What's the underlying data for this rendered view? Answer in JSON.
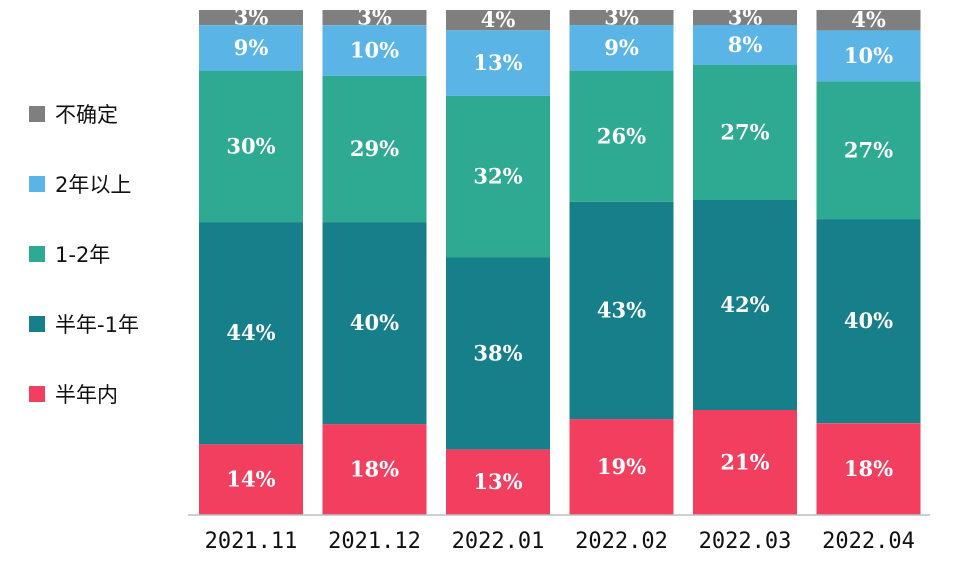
{
  "chart_data": {
    "type": "bar",
    "stacked": true,
    "normalized_percent": true,
    "categories": [
      "2021.11",
      "2021.12",
      "2022.01",
      "2022.02",
      "2022.03",
      "2022.04"
    ],
    "series": [
      {
        "name": "半年内",
        "color": "#f23f5f",
        "values": [
          14,
          18,
          13,
          19,
          21,
          18
        ],
        "labels": [
          "14%",
          "18%",
          "13%",
          "19%",
          "21%",
          "18%"
        ]
      },
      {
        "name": "半年-1年",
        "color": "#167f8a",
        "values": [
          44,
          40,
          38,
          43,
          42,
          40
        ],
        "labels": [
          "44%",
          "40%",
          "38%",
          "43%",
          "42%",
          "40%"
        ]
      },
      {
        "name": "1-2年",
        "color": "#2eaa92",
        "values": [
          30,
          29,
          32,
          26,
          27,
          27
        ],
        "labels": [
          "30%",
          "29%",
          "32%",
          "26%",
          "27%",
          "27%"
        ]
      },
      {
        "name": "2年以上",
        "color": "#5ab4e6",
        "values": [
          9,
          10,
          13,
          9,
          8,
          10
        ],
        "labels": [
          "9%",
          "10%",
          "13%",
          "9%",
          "8%",
          "10%"
        ]
      },
      {
        "name": "不确定",
        "color": "#7f7f7f",
        "values": [
          3,
          3,
          4,
          3,
          3,
          4
        ],
        "labels": [
          "3%",
          "3%",
          "4%",
          "3%",
          "3%",
          "4%"
        ]
      }
    ],
    "legend_order": [
      "不确定",
      "2年以上",
      "1-2年",
      "半年-1年",
      "半年内"
    ],
    "legend_position": "left",
    "grid": false
  }
}
